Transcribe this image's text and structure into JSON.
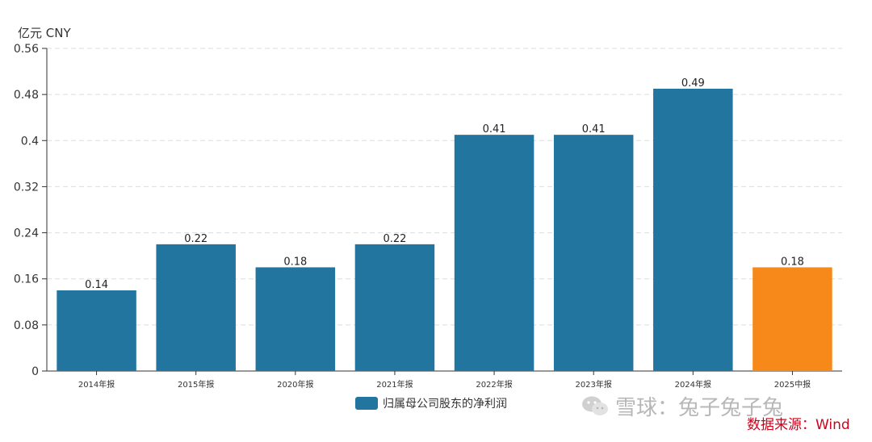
{
  "chart_data": {
    "type": "bar",
    "ylabel": "亿元  CNY",
    "categories": [
      "2014年报",
      "2015年报",
      "2020年报",
      "2021年报",
      "2022年报",
      "2023年报",
      "2024年报",
      "2025中报"
    ],
    "series": [
      {
        "name": "归属母公司股东的净利润",
        "values": [
          0.14,
          0.22,
          0.18,
          0.22,
          0.41,
          0.41,
          0.49,
          0.18
        ],
        "data_labels": [
          "0.14",
          "0.22",
          "0.18",
          "0.22",
          "0.41",
          "0.41",
          "0.49",
          "0.18"
        ]
      }
    ],
    "ylim": [
      0,
      0.56
    ],
    "yticks": [
      0,
      0.08,
      0.16,
      0.24,
      0.32,
      0.4,
      0.48,
      0.56
    ],
    "ytick_labels": [
      "0",
      "0.08",
      "0.16",
      "0.24",
      "0.32",
      "0.4",
      "0.48",
      "0.56"
    ],
    "grid": true,
    "legend_position": "bottom-center",
    "colors": {
      "bar": "#21759f",
      "highlight": "#f7891a",
      "highlight_index": 7
    }
  },
  "watermark": {
    "text": "雪球：兔子兔子兔",
    "icon": "wechat-icon"
  },
  "source": "数据来源：Wind"
}
